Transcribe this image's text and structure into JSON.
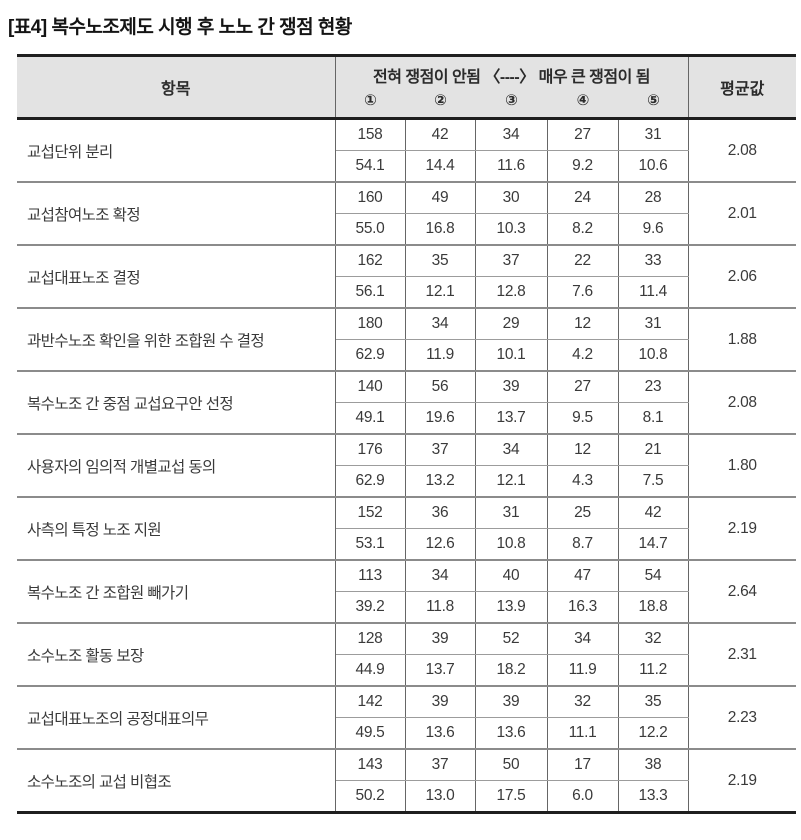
{
  "title": "[표4] 복수노조제도 시행 후 노노 간 쟁점 현황",
  "colors": {
    "header_bg": "#e3e3e3",
    "border_dark": "#1f1f1f",
    "border_gray": "#8b8b8b",
    "text": "#3a3a3a"
  },
  "table": {
    "col_item": "항목",
    "scale_label": "전혀 쟁점이 안됨 〈----〉 매우 큰 쟁점이 됨",
    "scale_points": [
      "①",
      "②",
      "③",
      "④",
      "⑤"
    ],
    "col_avg": "평균값",
    "rows": [
      {
        "item": "교섭단위 분리",
        "counts": [
          "158",
          "42",
          "34",
          "27",
          "31"
        ],
        "pcts": [
          "54.1",
          "14.4",
          "11.6",
          "9.2",
          "10.6"
        ],
        "avg": "2.08"
      },
      {
        "item": "교섭참여노조 확정",
        "counts": [
          "160",
          "49",
          "30",
          "24",
          "28"
        ],
        "pcts": [
          "55.0",
          "16.8",
          "10.3",
          "8.2",
          "9.6"
        ],
        "avg": "2.01"
      },
      {
        "item": "교섭대표노조 결정",
        "counts": [
          "162",
          "35",
          "37",
          "22",
          "33"
        ],
        "pcts": [
          "56.1",
          "12.1",
          "12.8",
          "7.6",
          "11.4"
        ],
        "avg": "2.06"
      },
      {
        "item": "과반수노조 확인을 위한 조합원 수 결정",
        "counts": [
          "180",
          "34",
          "29",
          "12",
          "31"
        ],
        "pcts": [
          "62.9",
          "11.9",
          "10.1",
          "4.2",
          "10.8"
        ],
        "avg": "1.88"
      },
      {
        "item": "복수노조 간 중점 교섭요구안 선정",
        "counts": [
          "140",
          "56",
          "39",
          "27",
          "23"
        ],
        "pcts": [
          "49.1",
          "19.6",
          "13.7",
          "9.5",
          "8.1"
        ],
        "avg": "2.08"
      },
      {
        "item": "사용자의 임의적 개별교섭 동의",
        "counts": [
          "176",
          "37",
          "34",
          "12",
          "21"
        ],
        "pcts": [
          "62.9",
          "13.2",
          "12.1",
          "4.3",
          "7.5"
        ],
        "avg": "1.80"
      },
      {
        "item": "사측의 특정 노조 지원",
        "counts": [
          "152",
          "36",
          "31",
          "25",
          "42"
        ],
        "pcts": [
          "53.1",
          "12.6",
          "10.8",
          "8.7",
          "14.7"
        ],
        "avg": "2.19"
      },
      {
        "item": "복수노조 간 조합원 빼가기",
        "counts": [
          "113",
          "34",
          "40",
          "47",
          "54"
        ],
        "pcts": [
          "39.2",
          "11.8",
          "13.9",
          "16.3",
          "18.8"
        ],
        "avg": "2.64"
      },
      {
        "item": "소수노조 활동 보장",
        "counts": [
          "128",
          "39",
          "52",
          "34",
          "32"
        ],
        "pcts": [
          "44.9",
          "13.7",
          "18.2",
          "11.9",
          "11.2"
        ],
        "avg": "2.31"
      },
      {
        "item": "교섭대표노조의 공정대표의무",
        "counts": [
          "142",
          "39",
          "39",
          "32",
          "35"
        ],
        "pcts": [
          "49.5",
          "13.6",
          "13.6",
          "11.1",
          "12.2"
        ],
        "avg": "2.23"
      },
      {
        "item": "소수노조의 교섭 비협조",
        "counts": [
          "143",
          "37",
          "50",
          "17",
          "38"
        ],
        "pcts": [
          "50.2",
          "13.0",
          "17.5",
          "6.0",
          "13.3"
        ],
        "avg": "2.19"
      }
    ]
  }
}
